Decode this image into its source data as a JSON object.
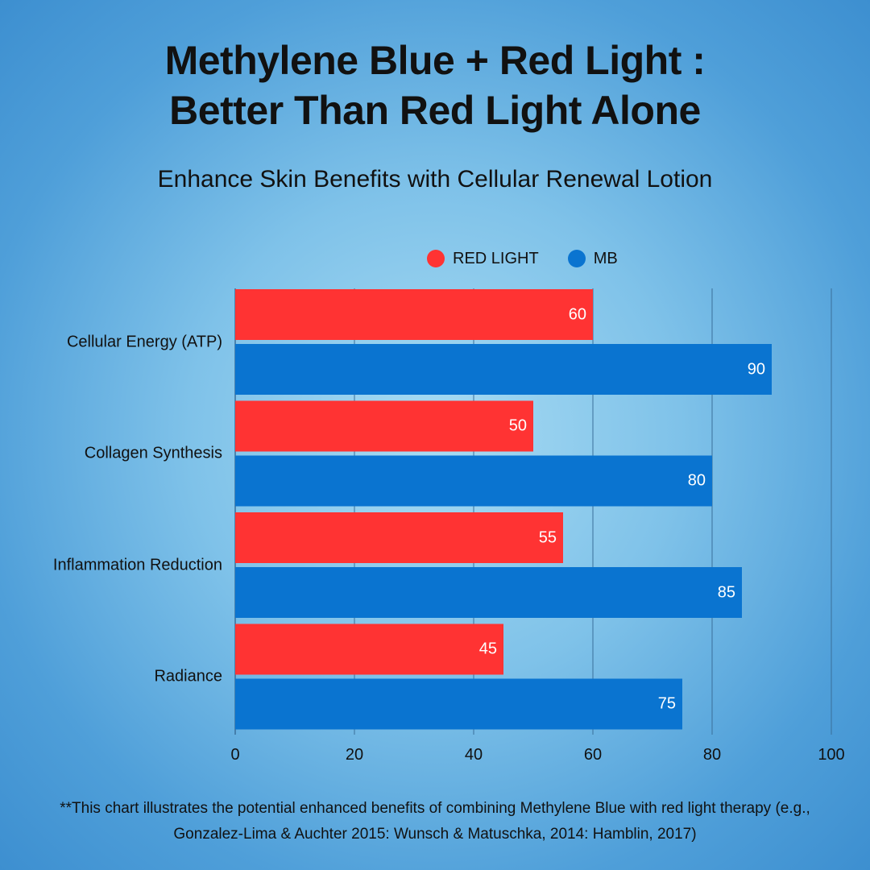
{
  "title_line1": "Methylene Blue + Red Light :",
  "title_line2": "Better Than Red Light Alone",
  "subtitle": "Enhance Skin Benefits with Cellular Renewal Lotion",
  "footnote_line1": "**This chart illustrates the potential enhanced benefits of combining Methylene Blue with red light therapy (e.g.,",
  "footnote_line2": "Gonzalez-Lima & Auchter 2015: Wunsch & Matuschka, 2014: Hamblin, 2017)",
  "colors": {
    "red": "#ff3333",
    "blue": "#0a74d0",
    "grid": "#3a6f9a"
  },
  "chart_data": {
    "type": "bar",
    "orientation": "horizontal",
    "categories": [
      "Cellular Energy (ATP)",
      "Collagen Synthesis",
      "Inflammation Reduction",
      "Radiance"
    ],
    "series": [
      {
        "name": "RED LIGHT",
        "values": [
          60,
          50,
          55,
          45
        ]
      },
      {
        "name": "MB",
        "values": [
          90,
          80,
          85,
          75
        ]
      }
    ],
    "xlim": [
      0,
      100
    ],
    "xticks": [
      0,
      20,
      40,
      60,
      80,
      100
    ],
    "grid": true,
    "legend_position": "top"
  }
}
